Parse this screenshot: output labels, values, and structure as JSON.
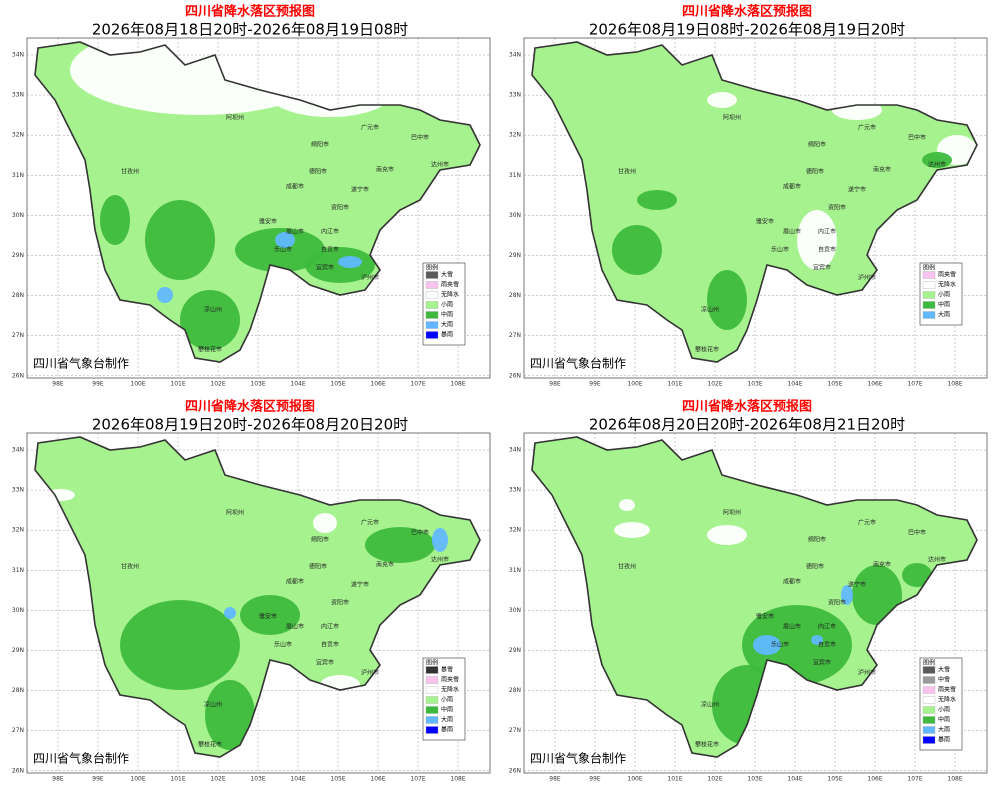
{
  "panels": [
    {
      "title": "四川省降水落区预报图",
      "period": "2026年08月18日20时-2026年08月19日08时",
      "credit": "四川省气象台制作",
      "legend": {
        "title": "图例",
        "items": [
          {
            "label": "大雪",
            "color": "#5a5a5a"
          },
          {
            "label": "雨夹雪",
            "color": "#f9c3f0"
          },
          {
            "label": "无降水",
            "color": "#ffffff"
          },
          {
            "label": "小雨",
            "color": "#a6f28f"
          },
          {
            "label": "中雨",
            "color": "#3dba3d"
          },
          {
            "label": "大雨",
            "color": "#61b8ff"
          },
          {
            "label": "暴雨",
            "color": "#0000fe"
          }
        ]
      }
    },
    {
      "title": "四川省降水落区预报图",
      "period": "2026年08月19日08时-2026年08月19日20时",
      "credit": "四川省气象台制作",
      "legend": {
        "title": "图例",
        "items": [
          {
            "label": "雨夹雪",
            "color": "#f9c3f0"
          },
          {
            "label": "无降水",
            "color": "#ffffff"
          },
          {
            "label": "小雨",
            "color": "#a6f28f"
          },
          {
            "label": "中雨",
            "color": "#3dba3d"
          },
          {
            "label": "大雨",
            "color": "#61b8ff"
          }
        ]
      }
    },
    {
      "title": "四川省降水落区预报图",
      "period": "2026年08月19日20时-2026年08月20日20时",
      "credit": "四川省气象台制作",
      "legend": {
        "title": "图例",
        "items": [
          {
            "label": "暴雪",
            "color": "#333333"
          },
          {
            "label": "雨夹雪",
            "color": "#f9c3f0"
          },
          {
            "label": "无降水",
            "color": "#ffffff"
          },
          {
            "label": "小雨",
            "color": "#a6f28f"
          },
          {
            "label": "中雨",
            "color": "#3dba3d"
          },
          {
            "label": "大雨",
            "color": "#61b8ff"
          },
          {
            "label": "暴雨",
            "color": "#0000fe"
          }
        ]
      }
    },
    {
      "title": "四川省降水落区预报图",
      "period": "2026年08月20日20时-2026年08月21日20时",
      "credit": "四川省气象台制作",
      "legend": {
        "title": "图例",
        "items": [
          {
            "label": "大雪",
            "color": "#5a5a5a"
          },
          {
            "label": "中雪",
            "color": "#9a9a9a"
          },
          {
            "label": "雨夹雪",
            "color": "#f9c3f0"
          },
          {
            "label": "无降水",
            "color": "#ffffff"
          },
          {
            "label": "小雨",
            "color": "#a6f28f"
          },
          {
            "label": "中雨",
            "color": "#3dba3d"
          },
          {
            "label": "大雨",
            "color": "#61b8ff"
          },
          {
            "label": "暴雨",
            "color": "#0000fe"
          }
        ]
      }
    }
  ],
  "lat_labels": [
    "34N",
    "33N",
    "32N",
    "31N",
    "30N",
    "29N",
    "28N",
    "27N",
    "26N"
  ],
  "lon_labels": [
    "98E",
    "99E",
    "100E",
    "101E",
    "102E",
    "103E",
    "104E",
    "105E",
    "106E",
    "107E",
    "108E"
  ],
  "places": [
    "阿坝州",
    "绵阳市",
    "广元市",
    "巴中市",
    "达州市",
    "甘孜州",
    "成都市",
    "德阳市",
    "南充市",
    "遂宁市",
    "雅安市",
    "眉山市",
    "资阳市",
    "内江市",
    "乐山市",
    "自贡市",
    "宜宾市",
    "泸州市",
    "凉山州",
    "攀枝花市"
  ]
}
